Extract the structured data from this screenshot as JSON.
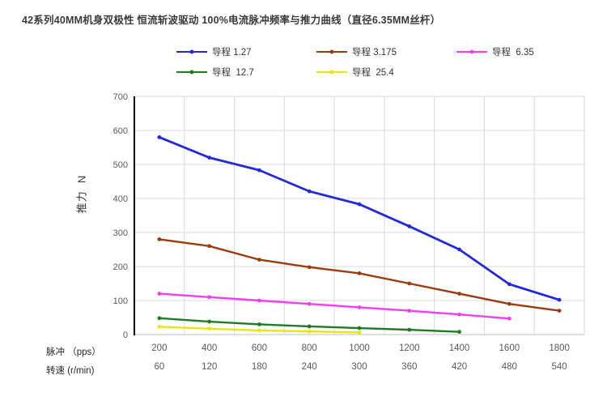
{
  "title": "42系列40MM机身双极性 恒流斩波驱动 100%电流脉冲频率与推力曲线（直径6.35MM丝杆）",
  "axis_labels": {
    "y_title": "推力  N",
    "x_row1_label": "脉冲 （pps）",
    "x_row2_label": "转速 (r/min)"
  },
  "colors": {
    "grid": "#d9d9d9",
    "x_axis_line": "#bfbfbf",
    "y_axis_line": "#000000",
    "tick_text": "#595959",
    "title_text": "#3a3a3a"
  },
  "chart_data": {
    "type": "line",
    "title": "42系列40MM机身双极性 恒流斩波驱动 100%电流脉冲频率与推力曲线（直径6.35MM丝杆）",
    "xlabel_row1": "脉冲 （pps）",
    "xlabel_row2": "转速 (r/min)",
    "ylabel": "推力  N",
    "x_pps": [
      200,
      400,
      600,
      800,
      1000,
      1200,
      1400,
      1600,
      1800
    ],
    "x_rpm": [
      60,
      120,
      180,
      240,
      300,
      360,
      420,
      480,
      540
    ],
    "ylim": [
      0,
      700
    ],
    "y_ticks": [
      0,
      100,
      200,
      300,
      400,
      500,
      600,
      700
    ],
    "grid": true,
    "legend_position": "top",
    "marker": "circle",
    "series": [
      {
        "name": "导程 1.27",
        "color": "#2228dc",
        "values": [
          580,
          520,
          483,
          421,
          383,
          318,
          250,
          148,
          102
        ]
      },
      {
        "name": "导程 3.175",
        "color": "#9c3a10",
        "values": [
          280,
          260,
          220,
          198,
          180,
          150,
          120,
          90,
          70
        ]
      },
      {
        "name": "导程  6.35",
        "color": "#f23df2",
        "values": [
          120,
          110,
          100,
          90,
          80,
          70,
          59,
          47
        ]
      },
      {
        "name": "导程  12.7",
        "color": "#217a21",
        "values": [
          48,
          38,
          30,
          24,
          19,
          14,
          8
        ]
      },
      {
        "name": "导程  25.4",
        "color": "#e8e40e",
        "values": [
          23,
          17,
          12,
          9,
          6
        ]
      }
    ]
  },
  "legend_layout_note": "row1: series 0,1,2 — row2: series 3,4"
}
